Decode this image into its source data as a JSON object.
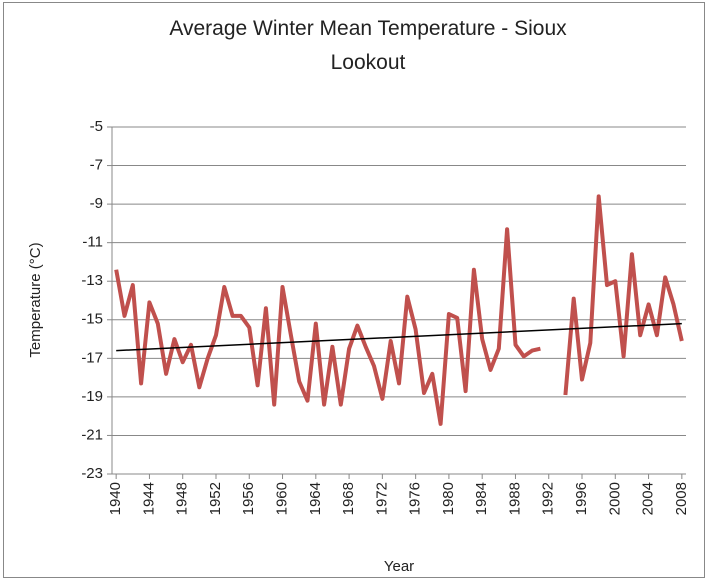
{
  "chart_data": {
    "type": "line",
    "title": "Average Winter Mean Temperature - Sioux Lookout",
    "x_label": "Year",
    "y_label": "Temperature (°C)",
    "x": [
      1940,
      1941,
      1942,
      1943,
      1944,
      1945,
      1946,
      1947,
      1948,
      1949,
      1950,
      1951,
      1952,
      1953,
      1954,
      1955,
      1956,
      1957,
      1958,
      1959,
      1960,
      1961,
      1962,
      1963,
      1964,
      1965,
      1966,
      1967,
      1968,
      1969,
      1970,
      1971,
      1972,
      1973,
      1974,
      1975,
      1976,
      1977,
      1978,
      1979,
      1980,
      1981,
      1982,
      1983,
      1984,
      1985,
      1986,
      1987,
      1988,
      1989,
      1990,
      1991,
      1992,
      1993,
      1994,
      1995,
      1996,
      1997,
      1998,
      1999,
      2000,
      2001,
      2002,
      2003,
      2004,
      2005,
      2006,
      2007,
      2008
    ],
    "series": [
      {
        "color": "#c0504d",
        "values": [
          -12.4,
          -14.8,
          -13.2,
          -18.3,
          -14.1,
          -15.2,
          -17.8,
          -16.0,
          -17.2,
          -16.3,
          -18.5,
          -17.0,
          -15.8,
          -13.3,
          -14.8,
          -14.8,
          -15.4,
          -18.4,
          -14.4,
          -19.4,
          -13.3,
          -15.8,
          -18.2,
          -19.2,
          -15.2,
          -19.4,
          -16.4,
          -19.4,
          -16.5,
          -15.3,
          -16.4,
          -17.4,
          -19.1,
          -16.1,
          -18.3,
          -13.8,
          -15.5,
          -18.8,
          -17.8,
          -20.4,
          -14.7,
          -14.9,
          -18.7,
          -12.4,
          -16.0,
          -17.6,
          -16.5,
          -10.3,
          -16.3,
          -16.9,
          -16.6,
          -16.5,
          null,
          null,
          -18.9,
          -13.9,
          -18.1,
          -16.2,
          -8.6,
          -13.2,
          -13.0,
          -16.9,
          -11.6,
          -15.8,
          -14.2,
          -15.8,
          -12.8,
          -14.2,
          -16.1
        ]
      }
    ],
    "trendline": {
      "color": "#000000",
      "x": [
        1940,
        2008
      ],
      "values": [
        -16.6,
        -15.2
      ]
    },
    "xlim": [
      1939.5,
      2008.5
    ],
    "xticks": [
      1940,
      1944,
      1948,
      1952,
      1956,
      1960,
      1964,
      1968,
      1972,
      1976,
      1980,
      1984,
      1988,
      1992,
      1996,
      2000,
      2004,
      2008
    ],
    "ylim": [
      -23,
      -5
    ],
    "yticks": [
      -23,
      -21,
      -19,
      -17,
      -15,
      -13,
      -11,
      -9,
      -7,
      -5
    ],
    "grid": true
  }
}
